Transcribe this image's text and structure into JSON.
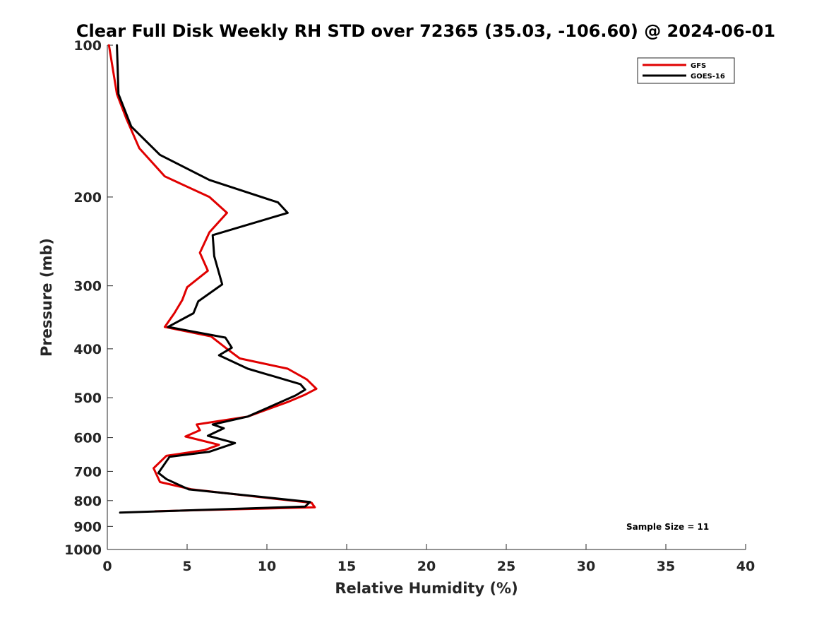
{
  "chart_data": {
    "type": "line",
    "title": "Clear Full Disk Weekly RH STD over 72365 (35.03, -106.60) @ 2024-06-01",
    "xlabel": "Relative Humidity (%)",
    "ylabel": "Pressure (mb)",
    "xlim": [
      0,
      40
    ],
    "ylim": [
      100,
      1000
    ],
    "y_scale": "log",
    "y_reversed": true,
    "xticks": [
      0,
      5,
      10,
      15,
      20,
      25,
      30,
      35,
      40
    ],
    "yticks": [
      100,
      200,
      300,
      400,
      500,
      600,
      700,
      800,
      900,
      1000
    ],
    "grid": false,
    "legend_position": "top-right",
    "annotation": "Sample Size = 11",
    "series": [
      {
        "name": "GFS",
        "color": "#e00000",
        "points": [
          [
            0.1,
            100
          ],
          [
            0.6,
            125
          ],
          [
            1.2,
            140
          ],
          [
            2.0,
            160
          ],
          [
            3.6,
            182
          ],
          [
            6.4,
            200
          ],
          [
            7.5,
            215
          ],
          [
            6.4,
            235
          ],
          [
            5.8,
            258
          ],
          [
            6.3,
            280
          ],
          [
            5.0,
            302
          ],
          [
            4.7,
            320
          ],
          [
            4.2,
            340
          ],
          [
            3.6,
            362
          ],
          [
            6.5,
            378
          ],
          [
            7.5,
            400
          ],
          [
            8.3,
            418
          ],
          [
            11.3,
            438
          ],
          [
            12.5,
            460
          ],
          [
            13.1,
            480
          ],
          [
            12.4,
            493
          ],
          [
            11.3,
            510
          ],
          [
            8.8,
            545
          ],
          [
            5.6,
            565
          ],
          [
            5.8,
            580
          ],
          [
            4.9,
            597
          ],
          [
            7.0,
            620
          ],
          [
            6.1,
            635
          ],
          [
            3.7,
            652
          ],
          [
            2.9,
            690
          ],
          [
            3.3,
            735
          ],
          [
            5.3,
            760
          ],
          [
            10.0,
            790
          ],
          [
            12.8,
            808
          ],
          [
            13.0,
            825
          ],
          [
            3.0,
            840
          ]
        ]
      },
      {
        "name": "GOES-16",
        "color": "#000000",
        "points": [
          [
            0.6,
            100
          ],
          [
            0.7,
            125
          ],
          [
            1.5,
            145
          ],
          [
            3.3,
            165
          ],
          [
            6.4,
            185
          ],
          [
            10.7,
            205
          ],
          [
            11.3,
            215
          ],
          [
            6.6,
            238
          ],
          [
            6.7,
            262
          ],
          [
            7.2,
            298
          ],
          [
            5.7,
            322
          ],
          [
            5.4,
            340
          ],
          [
            3.8,
            362
          ],
          [
            7.4,
            380
          ],
          [
            7.8,
            398
          ],
          [
            7.0,
            412
          ],
          [
            8.8,
            438
          ],
          [
            12.1,
            470
          ],
          [
            12.4,
            482
          ],
          [
            11.8,
            495
          ],
          [
            8.8,
            545
          ],
          [
            6.6,
            565
          ],
          [
            7.3,
            575
          ],
          [
            6.3,
            595
          ],
          [
            8.0,
            615
          ],
          [
            6.4,
            640
          ],
          [
            3.9,
            655
          ],
          [
            3.2,
            705
          ],
          [
            3.7,
            725
          ],
          [
            5.1,
            760
          ],
          [
            12.7,
            805
          ],
          [
            12.4,
            822
          ],
          [
            0.8,
            845
          ]
        ]
      }
    ]
  }
}
